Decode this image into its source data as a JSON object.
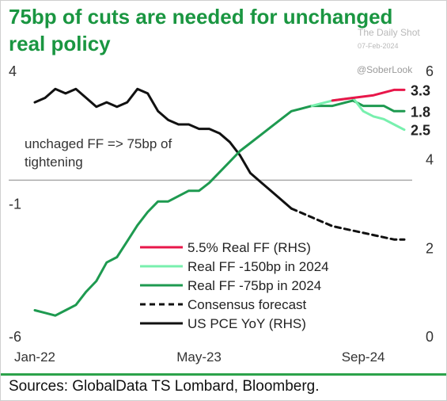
{
  "header": {
    "title_line1": "75bp of cuts are needed for unchanged",
    "title_line2": "real policy",
    "watermark_name": "The Daily Shot",
    "watermark_date": "07-Feb-2024",
    "handle": "@SoberLook"
  },
  "footer": {
    "source": "Sources: GlobalData TS Lombard, Bloomberg."
  },
  "colors": {
    "title": "#1a9641",
    "real_ff_55": "#e8174a",
    "real_ff_150": "#78f0ae",
    "real_ff_75": "#1e9a50",
    "consensus": "#111111",
    "pce": "#111111"
  },
  "chart_data": {
    "type": "line",
    "x_tick_labels": [
      "Jan-22",
      "May-23",
      "Sep-24"
    ],
    "x_range": [
      "2022-01",
      "2025-01"
    ],
    "left_axis": {
      "ticks": [
        "4",
        "-1",
        "-6"
      ],
      "ylim": [
        -6,
        4
      ]
    },
    "right_axis": {
      "ticks": [
        "6",
        "4",
        "2",
        "0"
      ],
      "ylim": [
        0,
        6
      ]
    },
    "reference_line": {
      "axis": "left",
      "y": -0.1
    },
    "annotation": [
      "unchaged FF => 75bp of",
      "tightening"
    ],
    "end_labels": [
      "3.3",
      "2.5",
      "1.8"
    ],
    "legend": [
      "5.5% Real FF (RHS)",
      "Real FF -150bp in 2024",
      "Real FF -75bp in 2024",
      "Consensus forecast",
      "US PCE YoY (RHS)"
    ],
    "series": [
      {
        "name": "US PCE YoY (RHS)",
        "axis": "right",
        "color": "#111111",
        "dash": false,
        "points": [
          [
            "2022-01",
            5.3
          ],
          [
            "2022-02",
            5.4
          ],
          [
            "2022-03",
            5.6
          ],
          [
            "2022-04",
            5.5
          ],
          [
            "2022-05",
            5.6
          ],
          [
            "2022-06",
            5.4
          ],
          [
            "2022-07",
            5.2
          ],
          [
            "2022-08",
            5.3
          ],
          [
            "2022-09",
            5.2
          ],
          [
            "2022-10",
            5.3
          ],
          [
            "2022-11",
            5.6
          ],
          [
            "2022-12",
            5.5
          ],
          [
            "2023-01",
            5.1
          ],
          [
            "2023-02",
            4.9
          ],
          [
            "2023-03",
            4.8
          ],
          [
            "2023-04",
            4.8
          ],
          [
            "2023-05",
            4.7
          ],
          [
            "2023-06",
            4.7
          ],
          [
            "2023-07",
            4.6
          ],
          [
            "2023-08",
            4.4
          ],
          [
            "2023-09",
            4.1
          ],
          [
            "2023-10",
            3.7
          ],
          [
            "2023-11",
            3.5
          ],
          [
            "2023-12",
            3.3
          ],
          [
            "2024-01",
            3.1
          ],
          [
            "2024-02",
            2.9
          ]
        ]
      },
      {
        "name": "Consensus forecast",
        "axis": "right",
        "color": "#111111",
        "dash": true,
        "points": [
          [
            "2024-02",
            2.9
          ],
          [
            "2024-04",
            2.7
          ],
          [
            "2024-06",
            2.5
          ],
          [
            "2024-08",
            2.4
          ],
          [
            "2024-10",
            2.3
          ],
          [
            "2024-12",
            2.2
          ],
          [
            "2025-01",
            2.2
          ]
        ]
      },
      {
        "name": "Real FF -75bp in 2024",
        "axis": "left",
        "color": "#1e9a50",
        "dash": false,
        "points": [
          [
            "2022-01",
            -5.0
          ],
          [
            "2022-02",
            -5.1
          ],
          [
            "2022-03",
            -5.2
          ],
          [
            "2022-04",
            -5.0
          ],
          [
            "2022-05",
            -4.8
          ],
          [
            "2022-06",
            -4.3
          ],
          [
            "2022-07",
            -3.9
          ],
          [
            "2022-08",
            -3.2
          ],
          [
            "2022-09",
            -3.0
          ],
          [
            "2022-10",
            -2.4
          ],
          [
            "2022-11",
            -1.8
          ],
          [
            "2022-12",
            -1.3
          ],
          [
            "2023-01",
            -0.9
          ],
          [
            "2023-02",
            -0.9
          ],
          [
            "2023-03",
            -0.7
          ],
          [
            "2023-04",
            -0.5
          ],
          [
            "2023-05",
            -0.5
          ],
          [
            "2023-06",
            -0.2
          ],
          [
            "2023-07",
            0.2
          ],
          [
            "2023-08",
            0.6
          ],
          [
            "2023-09",
            1.0
          ],
          [
            "2023-10",
            1.3
          ],
          [
            "2023-11",
            1.6
          ],
          [
            "2023-12",
            1.9
          ],
          [
            "2024-01",
            2.2
          ],
          [
            "2024-02",
            2.5
          ],
          [
            "2024-04",
            2.7
          ],
          [
            "2024-06",
            2.7
          ],
          [
            "2024-08",
            2.9
          ],
          [
            "2024-09",
            2.7
          ],
          [
            "2024-11",
            2.7
          ],
          [
            "2024-12",
            2.5
          ],
          [
            "2025-01",
            2.5
          ]
        ]
      },
      {
        "name": "Real FF -150bp in 2024",
        "axis": "left",
        "color": "#78f0ae",
        "dash": false,
        "points": [
          [
            "2024-04",
            2.7
          ],
          [
            "2024-06",
            2.9
          ],
          [
            "2024-08",
            3.0
          ],
          [
            "2024-09",
            2.5
          ],
          [
            "2024-10",
            2.3
          ],
          [
            "2024-11",
            2.2
          ],
          [
            "2024-12",
            2.0
          ],
          [
            "2025-01",
            1.8
          ]
        ]
      },
      {
        "name": "5.5% Real FF (RHS)",
        "axis": "left",
        "color": "#e8174a",
        "dash": false,
        "points": [
          [
            "2024-06",
            2.9
          ],
          [
            "2024-08",
            3.0
          ],
          [
            "2024-10",
            3.1
          ],
          [
            "2024-12",
            3.3
          ],
          [
            "2025-01",
            3.3
          ]
        ]
      }
    ]
  }
}
